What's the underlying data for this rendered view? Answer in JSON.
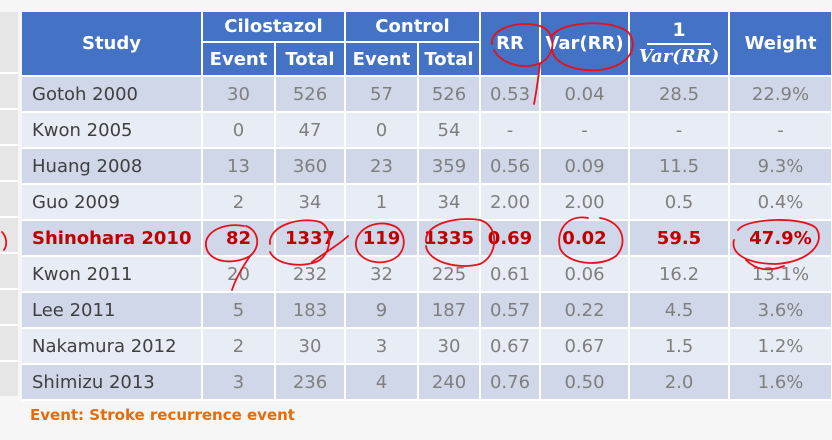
{
  "table": {
    "headers": {
      "study": "Study",
      "cilostazol": "Cilostazol",
      "control": "Control",
      "rr": "RR",
      "var_rr": "Var(RR)",
      "inv_num": "1",
      "inv_den": "Var(RR)",
      "weight": "Weight",
      "event": "Event",
      "total": "Total"
    },
    "rows": [
      {
        "study": "Gotoh 2000",
        "c_event": "30",
        "c_total": "526",
        "k_event": "57",
        "k_total": "526",
        "rr": "0.53",
        "var": "0.04",
        "inv": "28.5",
        "weight": "22.9%"
      },
      {
        "study": "Kwon 2005",
        "c_event": "0",
        "c_total": "47",
        "k_event": "0",
        "k_total": "54",
        "rr": "-",
        "var": "-",
        "inv": "-",
        "weight": "-"
      },
      {
        "study": "Huang 2008",
        "c_event": "13",
        "c_total": "360",
        "k_event": "23",
        "k_total": "359",
        "rr": "0.56",
        "var": "0.09",
        "inv": "11.5",
        "weight": "9.3%"
      },
      {
        "study": "Guo 2009",
        "c_event": "2",
        "c_total": "34",
        "k_event": "1",
        "k_total": "34",
        "rr": "2.00",
        "var": "2.00",
        "inv": "0.5",
        "weight": "0.4%"
      },
      {
        "study": "Shinohara 2010",
        "c_event": "82",
        "c_total": "1337",
        "k_event": "119",
        "k_total": "1335",
        "rr": "0.69",
        "var": "0.02",
        "inv": "59.5",
        "weight": "47.9%"
      },
      {
        "study": "Kwon 2011",
        "c_event": "20",
        "c_total": "232",
        "k_event": "32",
        "k_total": "225",
        "rr": "0.61",
        "var": "0.06",
        "inv": "16.2",
        "weight": "13.1%"
      },
      {
        "study": "Lee 2011",
        "c_event": "5",
        "c_total": "183",
        "k_event": "9",
        "k_total": "187",
        "rr": "0.57",
        "var": "0.22",
        "inv": "4.5",
        "weight": "3.6%"
      },
      {
        "study": "Nakamura 2012",
        "c_event": "2",
        "c_total": "30",
        "k_event": "3",
        "k_total": "30",
        "rr": "0.67",
        "var": "0.67",
        "inv": "1.5",
        "weight": "1.2%"
      },
      {
        "study": "Shimizu 2013",
        "c_event": "3",
        "c_total": "236",
        "k_event": "4",
        "k_total": "240",
        "rr": "0.76",
        "var": "0.50",
        "inv": "2.0",
        "weight": "1.6%"
      }
    ]
  },
  "footnote": "Event: Stroke recurrence event",
  "colors": {
    "header": "#4472c4",
    "row_odd": "#cfd7e9",
    "row_even": "#e8ecf5",
    "highlight": "#c00000",
    "footnote": "#e46c0a",
    "ink": "#e8101a"
  }
}
